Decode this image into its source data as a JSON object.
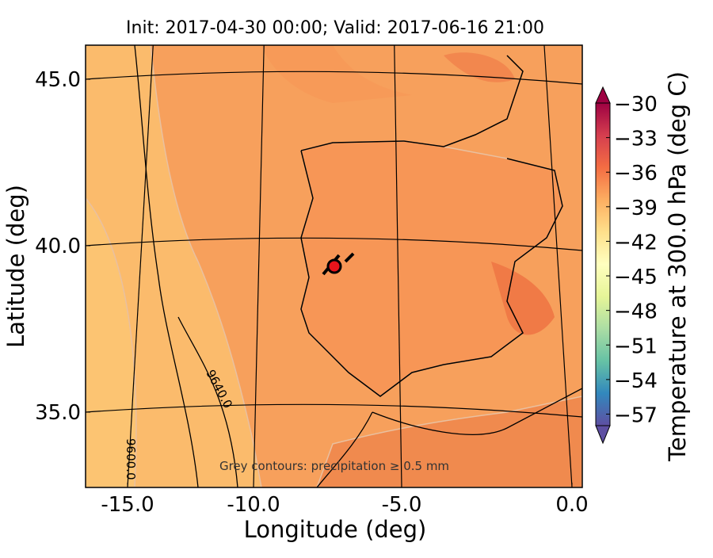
{
  "chart_data": {
    "type": "map",
    "title": "Init: 2017-04-30 00:00; Valid: 2017-06-16 21:00",
    "x_label": "Longitude (deg)",
    "y_label": "Latitude (deg)",
    "xticks": [
      {
        "value": -15,
        "label": "-15.0"
      },
      {
        "value": -10,
        "label": "-10.0"
      },
      {
        "value": -5,
        "label": "-5.0"
      },
      {
        "value": 0,
        "label": "0.0"
      }
    ],
    "yticks": [
      {
        "value": 35,
        "label": "35.0"
      },
      {
        "value": 40,
        "label": "40.0"
      },
      {
        "value": 45,
        "label": "45.0"
      }
    ],
    "annotations": [
      "9640.0",
      "9600.0",
      "Grey contours: precipitation ≥ 0.5 mm"
    ],
    "colorbar": {
      "label": "Temperature at 300.0 hPa (deg C)",
      "lim": [
        -58,
        -30
      ],
      "ticks": [
        {
          "value": -57,
          "label": "−57"
        },
        {
          "value": -54,
          "label": "−54"
        },
        {
          "value": -51,
          "label": "−51"
        },
        {
          "value": -48,
          "label": "−48"
        },
        {
          "value": -45,
          "label": "−45"
        },
        {
          "value": -42,
          "label": "−42"
        },
        {
          "value": -39,
          "label": "−39"
        },
        {
          "value": -36,
          "label": "−36"
        },
        {
          "value": -33,
          "label": "−33"
        },
        {
          "value": -30,
          "label": "−30"
        }
      ],
      "colors": [
        "#5e4fa2",
        "#3288bd",
        "#66c2a5",
        "#abdda4",
        "#e6f598",
        "#ffffbf",
        "#fee08b",
        "#fdae61",
        "#f46d43",
        "#d53e4f",
        "#9e0142"
      ]
    }
  }
}
